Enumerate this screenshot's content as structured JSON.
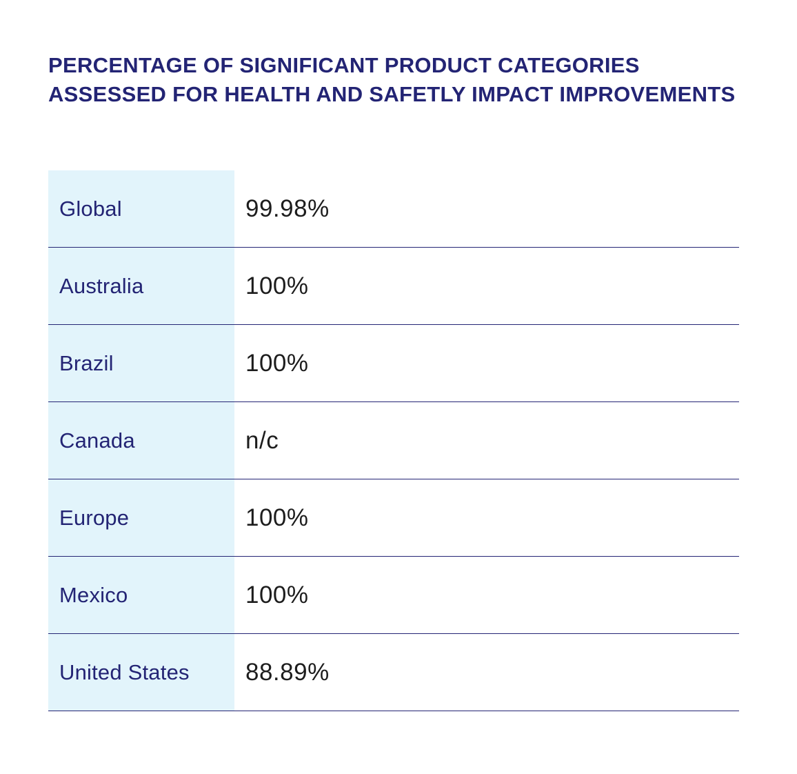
{
  "title": "PERCENTAGE OF SIGNIFICANT PRODUCT CATEGORIES ASSESSED FOR HEALTH AND SAFETLY IMPACT IMPROVEMENTS",
  "colors": {
    "title": "#232474",
    "label_background": "#e2f4fb",
    "row_divider": "#232474",
    "value_text": "#1d1d1d"
  },
  "table": {
    "rows": [
      {
        "region": "Global",
        "value": "99.98%"
      },
      {
        "region": "Australia",
        "value": "100%"
      },
      {
        "region": "Brazil",
        "value": "100%"
      },
      {
        "region": "Canada",
        "value": "n/c"
      },
      {
        "region": "Europe",
        "value": "100%"
      },
      {
        "region": "Mexico",
        "value": "100%"
      },
      {
        "region": "United States",
        "value": "88.89%"
      }
    ]
  }
}
